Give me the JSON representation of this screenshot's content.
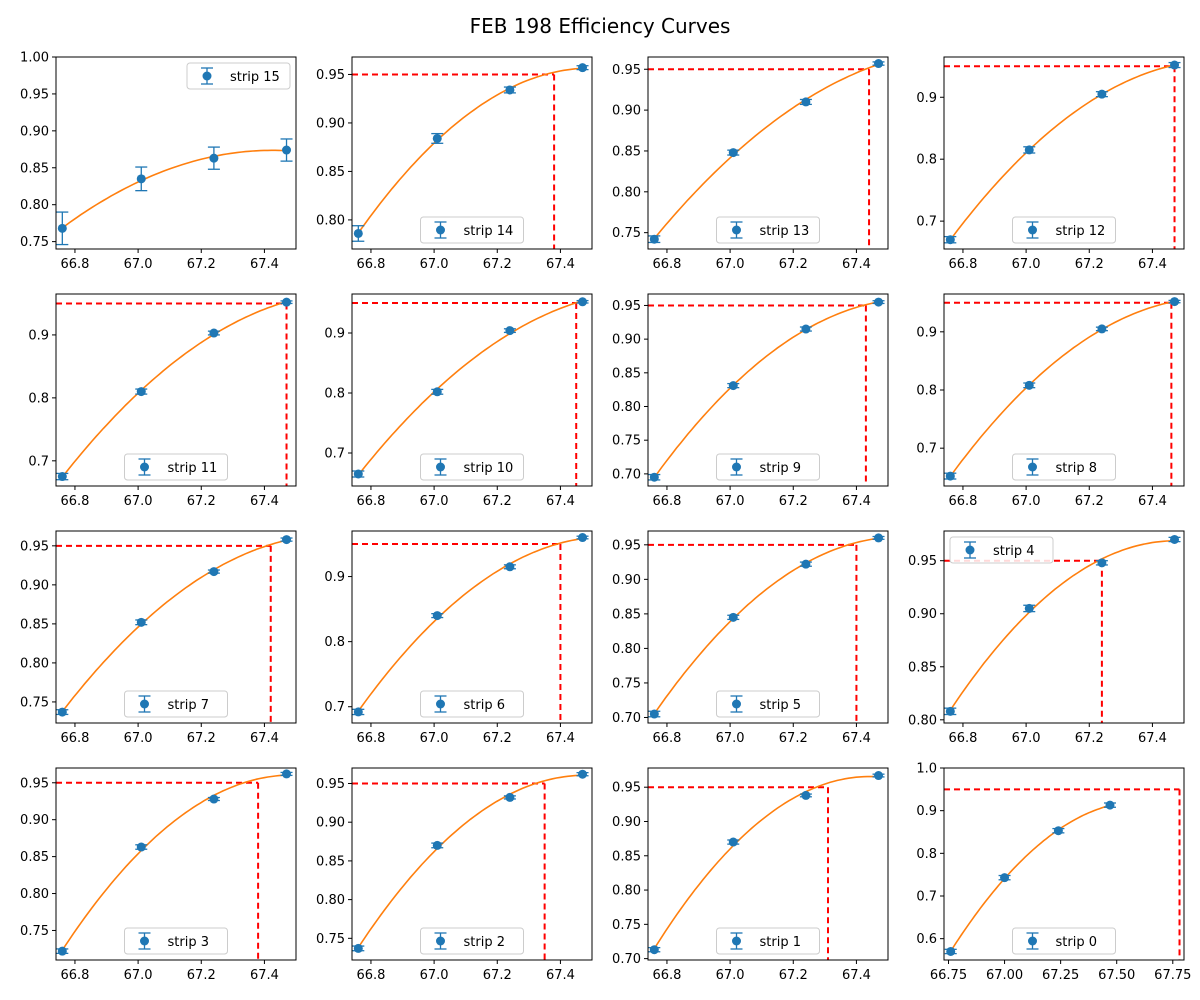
{
  "figure": {
    "title": "FEB 198 Efficiency Curves"
  },
  "colors": {
    "data": "#1f77b4",
    "fit": "#ff7f0e",
    "threshold": "#ff0000"
  },
  "chart_data": [
    {
      "type": "scatter",
      "legend": "strip 15",
      "legend_loc": "upper right",
      "x": [
        66.76,
        67.01,
        67.24,
        67.47
      ],
      "y": [
        0.768,
        0.835,
        0.863,
        0.874
      ],
      "yerr": [
        0.022,
        0.016,
        0.015,
        0.015
      ],
      "xlim": [
        66.74,
        67.5
      ],
      "ylim": [
        0.74,
        1.0
      ],
      "yticks": [
        "0.75",
        "0.80",
        "0.85",
        "0.90",
        "0.95",
        "1.00"
      ],
      "xticks": [
        "66.8",
        "67.0",
        "67.2",
        "67.4"
      ],
      "threshold_y": null,
      "threshold_x": null
    },
    {
      "type": "scatter",
      "legend": "strip 14",
      "legend_loc": "lower center",
      "x": [
        66.76,
        67.01,
        67.24,
        67.47
      ],
      "y": [
        0.786,
        0.884,
        0.934,
        0.957
      ],
      "yerr": [
        0.008,
        0.005,
        0.003,
        0.002
      ],
      "xlim": [
        66.74,
        67.5
      ],
      "ylim": [
        0.77,
        0.968
      ],
      "yticks": [
        "0.80",
        "0.85",
        "0.90",
        "0.95"
      ],
      "xticks": [
        "66.8",
        "67.0",
        "67.2",
        "67.4"
      ],
      "threshold_y": 0.95,
      "threshold_x": 67.38
    },
    {
      "type": "scatter",
      "legend": "strip 13",
      "legend_loc": "lower center",
      "x": [
        66.76,
        67.01,
        67.24,
        67.47
      ],
      "y": [
        0.742,
        0.848,
        0.91,
        0.957
      ],
      "yerr": [
        0.004,
        0.003,
        0.003,
        0.002
      ],
      "xlim": [
        66.74,
        67.5
      ],
      "ylim": [
        0.73,
        0.965
      ],
      "yticks": [
        "0.75",
        "0.80",
        "0.85",
        "0.90",
        "0.95"
      ],
      "xticks": [
        "66.8",
        "67.0",
        "67.2",
        "67.4"
      ],
      "threshold_y": 0.95,
      "threshold_x": 67.44
    },
    {
      "type": "scatter",
      "legend": "strip 12",
      "legend_loc": "lower center",
      "x": [
        66.76,
        67.01,
        67.24,
        67.47
      ],
      "y": [
        0.67,
        0.815,
        0.905,
        0.952
      ],
      "yerr": [
        0.005,
        0.005,
        0.004,
        0.004
      ],
      "xlim": [
        66.74,
        67.5
      ],
      "ylim": [
        0.655,
        0.965
      ],
      "yticks": [
        "0.7",
        "0.8",
        "0.9"
      ],
      "xticks": [
        "66.8",
        "67.0",
        "67.2",
        "67.4"
      ],
      "threshold_y": 0.95,
      "threshold_x": 67.47
    },
    {
      "type": "scatter",
      "legend": "strip 11",
      "legend_loc": "lower center",
      "x": [
        66.76,
        67.01,
        67.24,
        67.47
      ],
      "y": [
        0.675,
        0.81,
        0.903,
        0.952
      ],
      "yerr": [
        0.005,
        0.004,
        0.003,
        0.002
      ],
      "xlim": [
        66.74,
        67.5
      ],
      "ylim": [
        0.66,
        0.965
      ],
      "yticks": [
        "0.7",
        "0.8",
        "0.9"
      ],
      "xticks": [
        "66.8",
        "67.0",
        "67.2",
        "67.4"
      ],
      "threshold_y": 0.95,
      "threshold_x": 67.47
    },
    {
      "type": "scatter",
      "legend": "strip 10",
      "legend_loc": "lower center",
      "x": [
        66.76,
        67.01,
        67.24,
        67.47
      ],
      "y": [
        0.665,
        0.802,
        0.904,
        0.952
      ],
      "yerr": [
        0.005,
        0.004,
        0.003,
        0.002
      ],
      "xlim": [
        66.74,
        67.5
      ],
      "ylim": [
        0.645,
        0.965
      ],
      "yticks": [
        "0.7",
        "0.8",
        "0.9"
      ],
      "xticks": [
        "66.8",
        "67.0",
        "67.2",
        "67.4"
      ],
      "threshold_y": 0.95,
      "threshold_x": 67.45
    },
    {
      "type": "scatter",
      "legend": "strip 9",
      "legend_loc": "lower center",
      "x": [
        66.76,
        67.01,
        67.24,
        67.47
      ],
      "y": [
        0.695,
        0.831,
        0.915,
        0.955
      ],
      "yerr": [
        0.004,
        0.003,
        0.003,
        0.002
      ],
      "xlim": [
        66.74,
        67.5
      ],
      "ylim": [
        0.682,
        0.967
      ],
      "yticks": [
        "0.70",
        "0.75",
        "0.80",
        "0.85",
        "0.90",
        "0.95"
      ],
      "xticks": [
        "66.8",
        "67.0",
        "67.2",
        "67.4"
      ],
      "threshold_y": 0.95,
      "threshold_x": 67.43
    },
    {
      "type": "scatter",
      "legend": "strip 8",
      "legend_loc": "lower center",
      "x": [
        66.76,
        67.01,
        67.24,
        67.47
      ],
      "y": [
        0.652,
        0.808,
        0.905,
        0.952
      ],
      "yerr": [
        0.005,
        0.004,
        0.003,
        0.002
      ],
      "xlim": [
        66.74,
        67.5
      ],
      "ylim": [
        0.635,
        0.965
      ],
      "yticks": [
        "0.7",
        "0.8",
        "0.9"
      ],
      "xticks": [
        "66.8",
        "67.0",
        "67.2",
        "67.4"
      ],
      "threshold_y": 0.95,
      "threshold_x": 67.46
    },
    {
      "type": "scatter",
      "legend": "strip 7",
      "legend_loc": "lower center",
      "x": [
        66.76,
        67.01,
        67.24,
        67.47
      ],
      "y": [
        0.737,
        0.852,
        0.917,
        0.958
      ],
      "yerr": [
        0.003,
        0.003,
        0.002,
        0.002
      ],
      "xlim": [
        66.74,
        67.5
      ],
      "ylim": [
        0.723,
        0.969
      ],
      "yticks": [
        "0.75",
        "0.80",
        "0.85",
        "0.90",
        "0.95"
      ],
      "xticks": [
        "66.8",
        "67.0",
        "67.2",
        "67.4"
      ],
      "threshold_y": 0.95,
      "threshold_x": 67.42
    },
    {
      "type": "scatter",
      "legend": "strip 6",
      "legend_loc": "lower center",
      "x": [
        66.76,
        67.01,
        67.24,
        67.47
      ],
      "y": [
        0.692,
        0.84,
        0.915,
        0.96
      ],
      "yerr": [
        0.004,
        0.003,
        0.003,
        0.002
      ],
      "xlim": [
        66.74,
        67.5
      ],
      "ylim": [
        0.675,
        0.97
      ],
      "yticks": [
        "0.7",
        "0.8",
        "0.9"
      ],
      "xticks": [
        "66.8",
        "67.0",
        "67.2",
        "67.4"
      ],
      "threshold_y": 0.95,
      "threshold_x": 67.4
    },
    {
      "type": "scatter",
      "legend": "strip 5",
      "legend_loc": "lower center",
      "x": [
        66.76,
        67.01,
        67.24,
        67.47
      ],
      "y": [
        0.705,
        0.845,
        0.922,
        0.96
      ],
      "yerr": [
        0.004,
        0.003,
        0.003,
        0.002
      ],
      "xlim": [
        66.74,
        67.5
      ],
      "ylim": [
        0.692,
        0.97
      ],
      "yticks": [
        "0.70",
        "0.75",
        "0.80",
        "0.85",
        "0.90",
        "0.95"
      ],
      "xticks": [
        "66.8",
        "67.0",
        "67.2",
        "67.4"
      ],
      "threshold_y": 0.95,
      "threshold_x": 67.4
    },
    {
      "type": "scatter",
      "legend": "strip 4",
      "legend_loc": "upper left",
      "x": [
        66.76,
        67.01,
        67.24,
        67.47
      ],
      "y": [
        0.808,
        0.905,
        0.948,
        0.97
      ],
      "yerr": [
        0.003,
        0.003,
        0.002,
        0.002
      ],
      "xlim": [
        66.74,
        67.5
      ],
      "ylim": [
        0.797,
        0.978
      ],
      "yticks": [
        "0.80",
        "0.85",
        "0.90",
        "0.95"
      ],
      "xticks": [
        "66.8",
        "67.0",
        "67.2",
        "67.4"
      ],
      "threshold_y": 0.95,
      "threshold_x": 67.24
    },
    {
      "type": "scatter",
      "legend": "strip 3",
      "legend_loc": "lower center",
      "x": [
        66.76,
        67.01,
        67.24,
        67.47
      ],
      "y": [
        0.722,
        0.863,
        0.928,
        0.962
      ],
      "yerr": [
        0.003,
        0.003,
        0.002,
        0.002
      ],
      "xlim": [
        66.74,
        67.5
      ],
      "ylim": [
        0.71,
        0.97
      ],
      "yticks": [
        "0.75",
        "0.80",
        "0.85",
        "0.90",
        "0.95"
      ],
      "xticks": [
        "66.8",
        "67.0",
        "67.2",
        "67.4"
      ],
      "threshold_y": 0.95,
      "threshold_x": 67.38
    },
    {
      "type": "scatter",
      "legend": "strip 2",
      "legend_loc": "lower center",
      "x": [
        66.76,
        67.01,
        67.24,
        67.47
      ],
      "y": [
        0.737,
        0.87,
        0.932,
        0.962
      ],
      "yerr": [
        0.003,
        0.003,
        0.002,
        0.002
      ],
      "xlim": [
        66.74,
        67.5
      ],
      "ylim": [
        0.722,
        0.97
      ],
      "yticks": [
        "0.75",
        "0.80",
        "0.85",
        "0.90",
        "0.95"
      ],
      "xticks": [
        "66.8",
        "67.0",
        "67.2",
        "67.4"
      ],
      "threshold_y": 0.95,
      "threshold_x": 67.35
    },
    {
      "type": "scatter",
      "legend": "strip 1",
      "legend_loc": "lower center",
      "x": [
        66.76,
        67.01,
        67.24,
        67.47
      ],
      "y": [
        0.713,
        0.87,
        0.938,
        0.967
      ],
      "yerr": [
        0.003,
        0.003,
        0.002,
        0.002
      ],
      "xlim": [
        66.74,
        67.5
      ],
      "ylim": [
        0.698,
        0.978
      ],
      "yticks": [
        "0.70",
        "0.75",
        "0.80",
        "0.85",
        "0.90",
        "0.95"
      ],
      "xticks": [
        "66.8",
        "67.0",
        "67.2",
        "67.4"
      ],
      "threshold_y": 0.95,
      "threshold_x": 67.31
    },
    {
      "type": "scatter",
      "legend": "strip 0",
      "legend_loc": "lower center",
      "x": [
        66.76,
        67.0,
        67.24,
        67.47
      ],
      "y": [
        0.57,
        0.743,
        0.853,
        0.913
      ],
      "yerr": [
        0.005,
        0.005,
        0.005,
        0.005
      ],
      "xlim": [
        66.73,
        67.8
      ],
      "ylim": [
        0.55,
        1.0
      ],
      "yticks": [
        "0.6",
        "0.7",
        "0.8",
        "0.9",
        "1.0"
      ],
      "xticks": [
        "66.75",
        "67.00",
        "67.25",
        "67.50",
        "67.75"
      ],
      "threshold_y": 0.95,
      "threshold_x": 67.78
    }
  ]
}
